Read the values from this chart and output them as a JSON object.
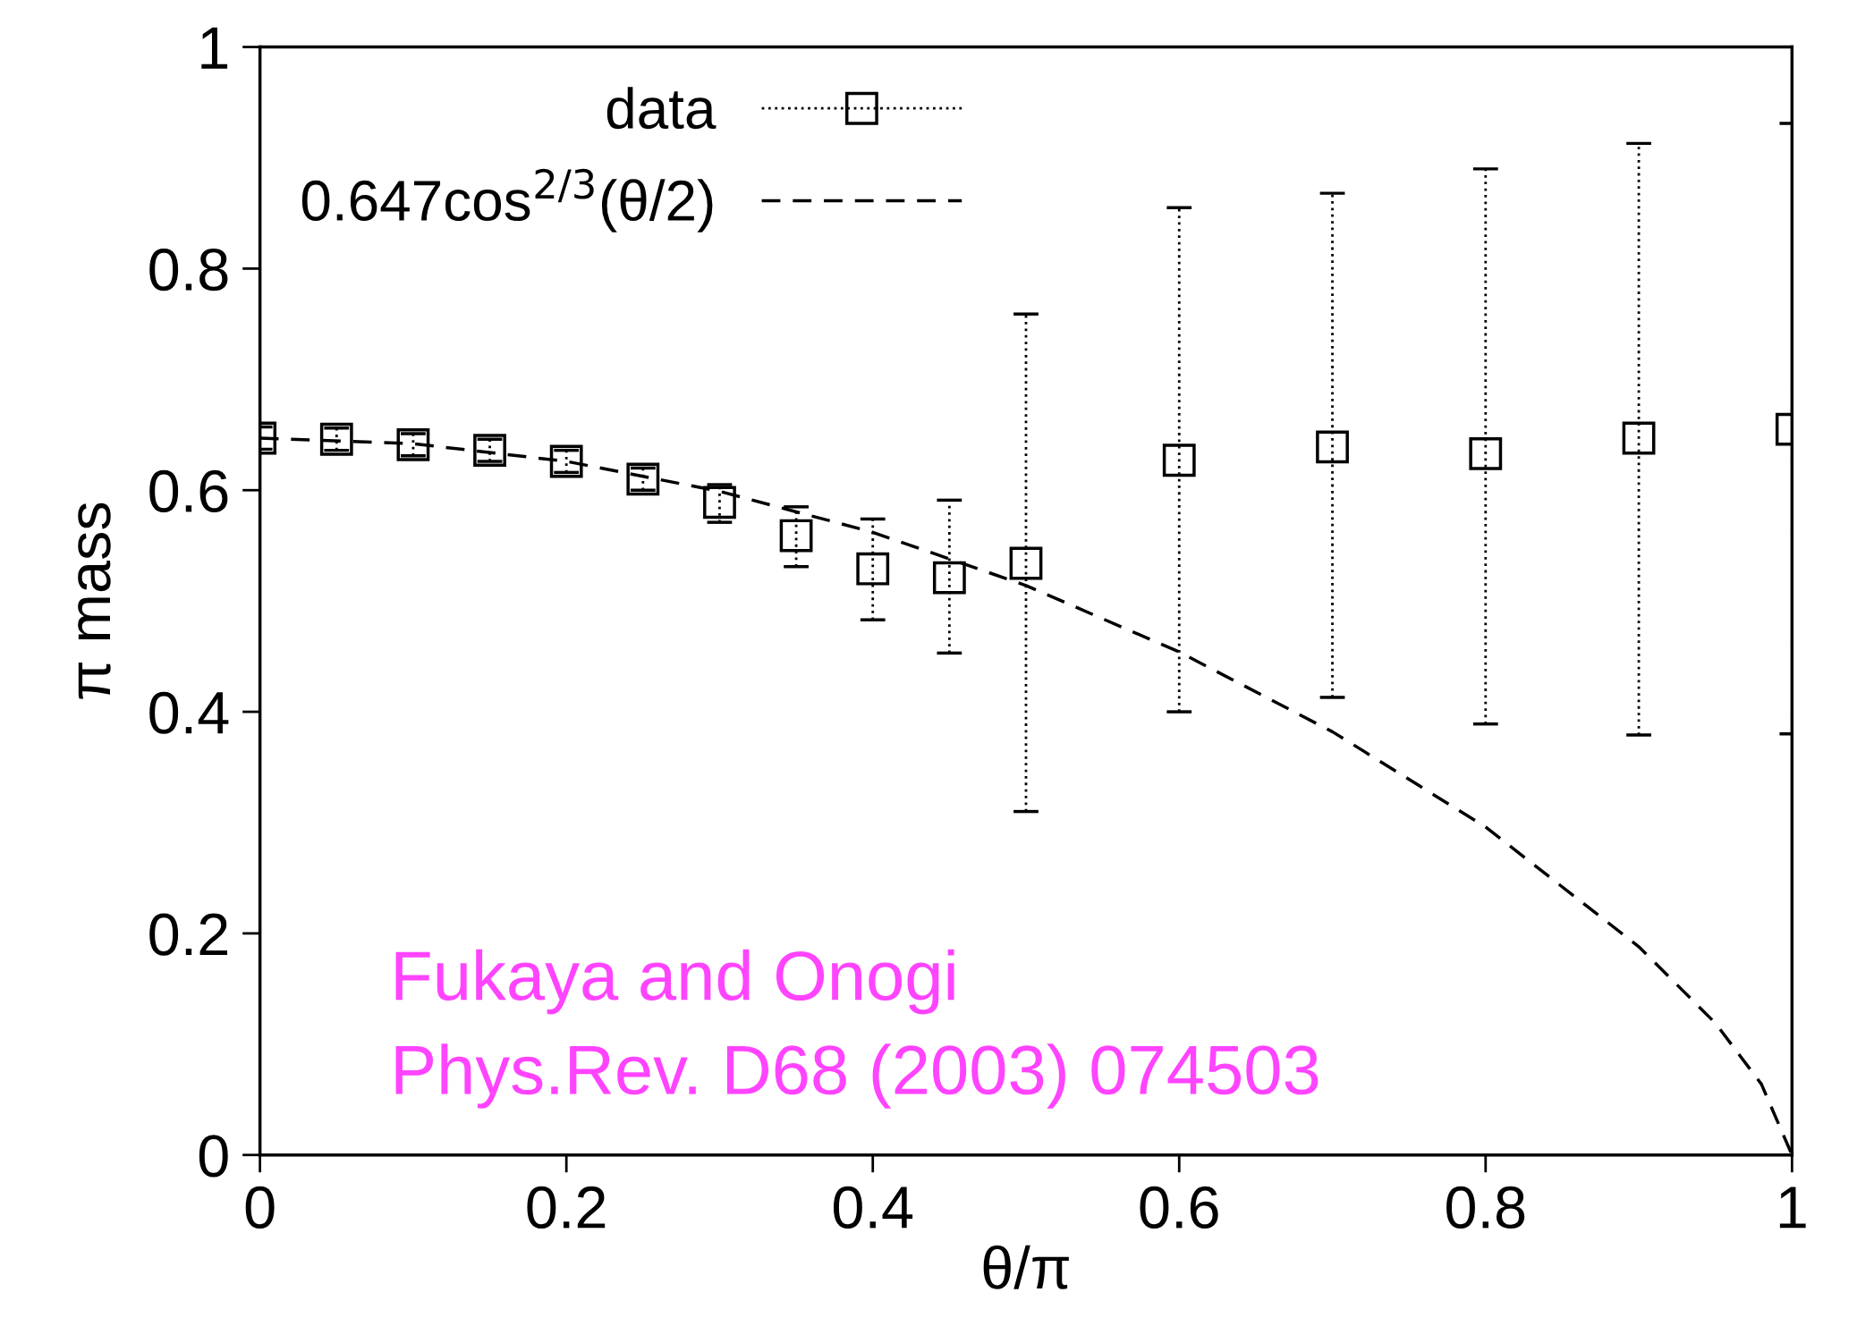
{
  "chart_data": {
    "type": "scatter",
    "xlabel": "θ/π",
    "ylabel": "π mass",
    "xlim": [
      0,
      1
    ],
    "ylim": [
      0,
      1
    ],
    "xticks": [
      0,
      0.2,
      0.4,
      0.6,
      0.8,
      1
    ],
    "yticks": [
      0,
      0.2,
      0.4,
      0.6,
      0.8,
      1
    ],
    "grid": false,
    "legend": "top left",
    "series": [
      {
        "name": "data",
        "color": "#000000",
        "marker": "square",
        "line_style": "dotted",
        "x": [
          0,
          0.05,
          0.1,
          0.15,
          0.2,
          0.25,
          0.3,
          0.35,
          0.4,
          0.45,
          0.5,
          0.6,
          0.7,
          0.8,
          0.9,
          1.0
        ],
        "values": [
          0.647,
          0.646,
          0.641,
          0.636,
          0.626,
          0.61,
          0.589,
          0.559,
          0.529,
          0.521,
          0.534,
          0.627,
          0.639,
          0.633,
          0.647,
          0.655
        ],
        "errors": [
          0.01,
          0.01,
          0.01,
          0.01,
          0.01,
          0.01,
          [
            0.571,
            0.605
          ],
          [
            0.531,
            0.585
          ],
          [
            0.483,
            0.574
          ],
          [
            0.453,
            0.591
          ],
          [
            0.31,
            0.759
          ],
          [
            0.4,
            0.855
          ],
          [
            0.413,
            0.868
          ],
          [
            0.389,
            0.89
          ],
          [
            0.379,
            0.913
          ],
          [
            0.38,
            0.931
          ]
        ]
      },
      {
        "name": "0.647cos$^{2/3}$(θ/2)",
        "type": "line",
        "color": "#000000",
        "marker": "none",
        "line_style": "dashed",
        "x": [
          0,
          0.1,
          0.2,
          0.3,
          0.4,
          0.5,
          0.6,
          0.7,
          0.8,
          0.9,
          0.95,
          0.98,
          1.0
        ],
        "values": [
          0.647,
          0.642,
          0.626,
          0.599,
          0.562,
          0.514,
          0.454,
          0.382,
          0.296,
          0.188,
          0.119,
          0.064,
          0
        ]
      }
    ],
    "annotations": [
      "Fukaya and Onogi",
      "Phys.Rev. D68 (2003) 074503"
    ]
  }
}
